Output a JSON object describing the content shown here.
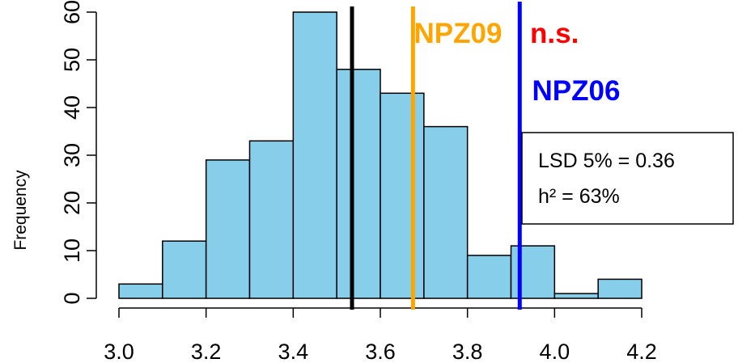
{
  "chart_data": {
    "type": "histogram",
    "title": "",
    "xlabel": "",
    "ylabel": "Frequency",
    "xlim": [
      3.0,
      4.2
    ],
    "ylim": [
      0,
      60
    ],
    "x_ticks": [
      "3.0",
      "3.2",
      "3.4",
      "3.6",
      "3.8",
      "4.0",
      "4.2"
    ],
    "y_ticks": [
      "0",
      "10",
      "20",
      "30",
      "40",
      "50",
      "60"
    ],
    "bins": [
      {
        "start": 3.0,
        "end": 3.1,
        "count": 3
      },
      {
        "start": 3.1,
        "end": 3.2,
        "count": 12
      },
      {
        "start": 3.2,
        "end": 3.3,
        "count": 29
      },
      {
        "start": 3.3,
        "end": 3.4,
        "count": 33
      },
      {
        "start": 3.4,
        "end": 3.5,
        "count": 60
      },
      {
        "start": 3.5,
        "end": 3.6,
        "count": 48
      },
      {
        "start": 3.6,
        "end": 3.7,
        "count": 43
      },
      {
        "start": 3.7,
        "end": 3.8,
        "count": 36
      },
      {
        "start": 3.8,
        "end": 3.9,
        "count": 9
      },
      {
        "start": 3.9,
        "end": 4.0,
        "count": 11
      },
      {
        "start": 4.0,
        "end": 4.1,
        "count": 1
      },
      {
        "start": 4.1,
        "end": 4.2,
        "count": 4
      }
    ],
    "bar_color": "#87CEEB",
    "vertical_lines": [
      {
        "x": 3.535,
        "color": "#000000",
        "label": ""
      },
      {
        "x": 3.675,
        "color": "#FFA500",
        "label": "NPZ09"
      },
      {
        "x": 3.92,
        "color": "#0000FF",
        "label": "NPZ06"
      }
    ],
    "annotations": [
      {
        "text": "n.s.",
        "color": "#FF0000"
      }
    ],
    "stats_box": {
      "lines": [
        "LSD 5% = 0.36",
        "h² = 63%"
      ]
    }
  }
}
